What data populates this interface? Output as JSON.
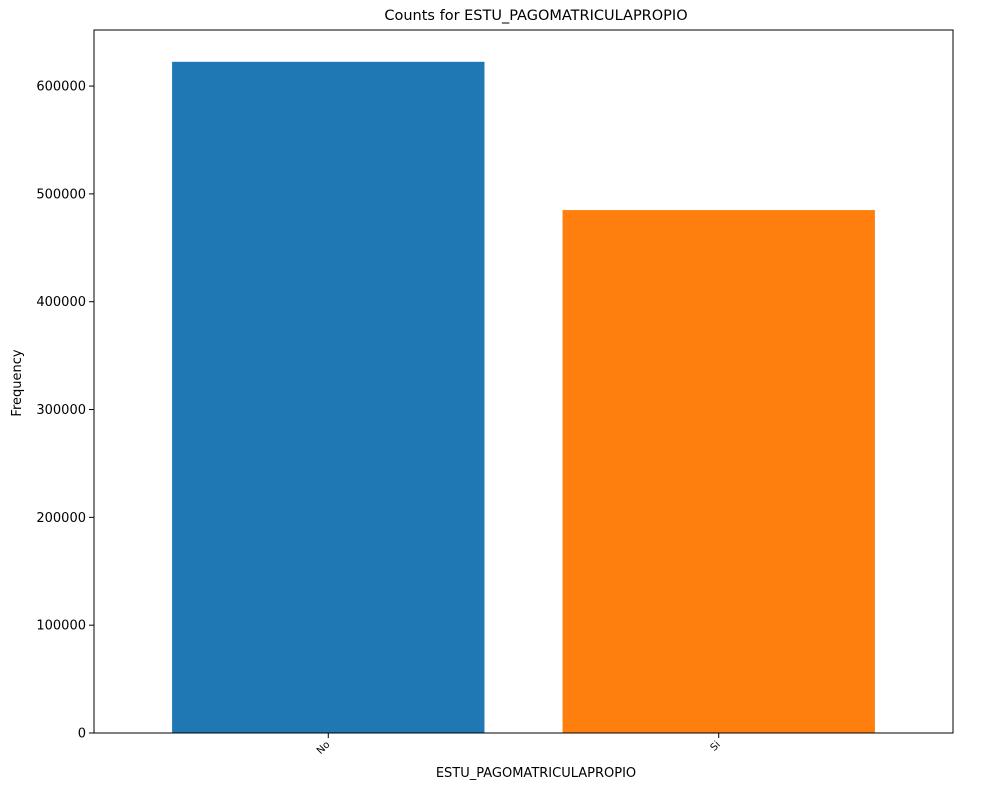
{
  "chart_data": {
    "type": "bar",
    "title": "Counts for ESTU_PAGOMATRICULAPROPIO",
    "xlabel": "ESTU_PAGOMATRICULAPROPIO",
    "ylabel": "Frequency",
    "categories": [
      "No",
      "Si"
    ],
    "values": [
      622500,
      485000
    ],
    "colors": [
      "#1f77b4",
      "#ff7f0e"
    ],
    "ylim": [
      0,
      652000
    ],
    "yticks": [
      0,
      100000,
      200000,
      300000,
      400000,
      500000,
      600000
    ],
    "ytick_labels": [
      "0",
      "100000",
      "200000",
      "300000",
      "400000",
      "500000",
      "600000"
    ],
    "grid": false,
    "legend": "none"
  }
}
